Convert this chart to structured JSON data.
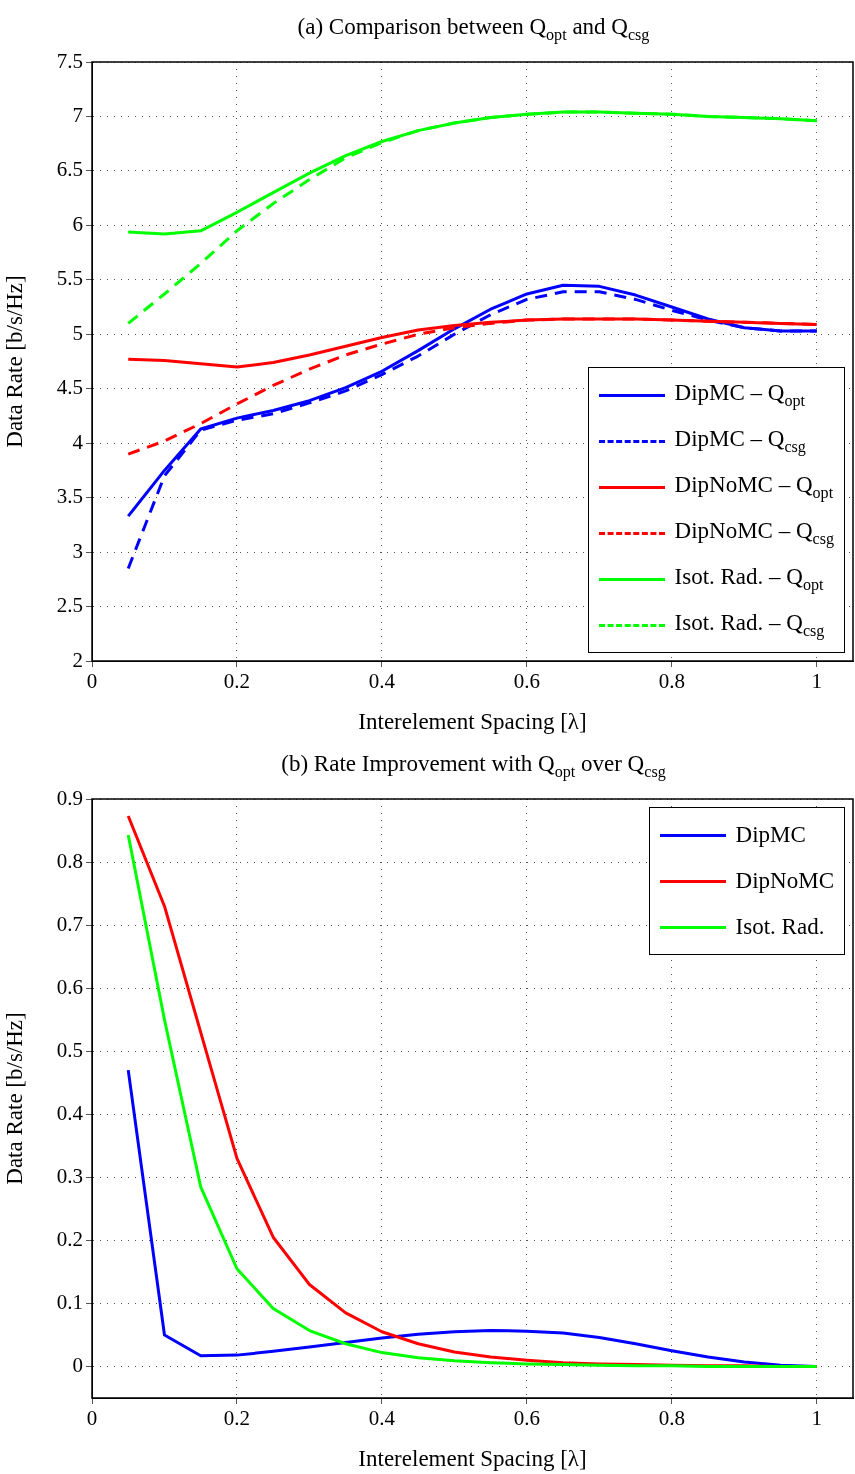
{
  "chart_data": [
    {
      "type": "line",
      "title": "(a) Comparison between Q$_{opt}$ and Q$_{csg}$",
      "xlabel": "Interelement Spacing [λ]",
      "ylabel": "Data Rate [b/s/Hz]",
      "x": [
        0.05,
        0.1,
        0.15,
        0.2,
        0.25,
        0.3,
        0.35,
        0.4,
        0.45,
        0.5,
        0.55,
        0.6,
        0.65,
        0.7,
        0.75,
        0.8,
        0.85,
        0.9,
        0.95,
        1
      ],
      "xlim": [
        0,
        1.05
      ],
      "xticks": [
        0,
        0.2,
        0.4,
        0.6,
        0.8,
        1
      ],
      "ylim": [
        2,
        7.5
      ],
      "yticks": [
        2,
        2.5,
        3,
        3.5,
        4,
        4.5,
        5,
        5.5,
        6,
        6.5,
        7,
        7.5
      ],
      "grid": true,
      "legend": "bottom right",
      "marker": "none",
      "series": [
        {
          "name": "DipMC – Q$_{opt}$",
          "color": "#0000ff",
          "line_style": "solid",
          "values": [
            3.33,
            3.75,
            4.13,
            4.23,
            4.3,
            4.39,
            4.51,
            4.66,
            4.85,
            5.05,
            5.23,
            5.37,
            5.45,
            5.44,
            5.36,
            5.25,
            5.14,
            5.06,
            5.03,
            5.03
          ]
        },
        {
          "name": "DipMC – Q$_{csg}$",
          "color": "#0000ff",
          "line_style": "dashed",
          "values": [
            2.85,
            3.7,
            4.12,
            4.21,
            4.27,
            4.37,
            4.48,
            4.63,
            4.8,
            5.0,
            5.18,
            5.32,
            5.39,
            5.39,
            5.32,
            5.22,
            5.13,
            5.06,
            5.03,
            5.03
          ]
        },
        {
          "name": "DipNoMC – Q$_{opt}$",
          "color": "#ff0000",
          "line_style": "solid",
          "values": [
            4.77,
            4.76,
            4.73,
            4.7,
            4.74,
            4.81,
            4.89,
            4.97,
            5.04,
            5.08,
            5.11,
            5.13,
            5.14,
            5.14,
            5.14,
            5.13,
            5.12,
            5.11,
            5.1,
            5.09
          ]
        },
        {
          "name": "DipNoMC – Q$_{csg}$",
          "color": "#ff0000",
          "line_style": "dashed",
          "values": [
            3.9,
            4.02,
            4.18,
            4.36,
            4.53,
            4.68,
            4.81,
            4.91,
            5.0,
            5.06,
            5.1,
            5.13,
            5.14,
            5.14,
            5.14,
            5.13,
            5.12,
            5.11,
            5.1,
            5.09
          ]
        },
        {
          "name": "Isot. Rad. – Q$_{opt}$",
          "color": "#00ff00",
          "line_style": "solid",
          "values": [
            5.94,
            5.92,
            5.95,
            6.12,
            6.3,
            6.48,
            6.64,
            6.77,
            6.87,
            6.94,
            6.99,
            7.02,
            7.04,
            7.04,
            7.03,
            7.02,
            7.0,
            6.99,
            6.98,
            6.96
          ]
        },
        {
          "name": "Isot. Rad. – Q$_{csg}$",
          "color": "#00ff00",
          "line_style": "dashed",
          "values": [
            5.1,
            5.37,
            5.65,
            5.95,
            6.2,
            6.42,
            6.62,
            6.76,
            6.87,
            6.94,
            6.99,
            7.02,
            7.04,
            7.04,
            7.03,
            7.02,
            7.0,
            6.99,
            6.98,
            6.96
          ]
        }
      ]
    },
    {
      "type": "line",
      "title": "(b) Rate Improvement with Q$_{opt}$ over Q$_{csg}$",
      "xlabel": "Interelement Spacing [λ]",
      "ylabel": "Data Rate [b/s/Hz]",
      "x": [
        0.05,
        0.1,
        0.15,
        0.2,
        0.25,
        0.3,
        0.35,
        0.4,
        0.45,
        0.5,
        0.55,
        0.6,
        0.65,
        0.7,
        0.75,
        0.8,
        0.85,
        0.9,
        0.95,
        1
      ],
      "xlim": [
        0,
        1.05
      ],
      "xticks": [
        0,
        0.2,
        0.4,
        0.6,
        0.8,
        1
      ],
      "ylim": [
        -0.05,
        0.9
      ],
      "yticks": [
        0,
        0.1,
        0.2,
        0.3,
        0.4,
        0.5,
        0.6,
        0.7,
        0.8,
        0.9
      ],
      "grid": true,
      "legend": "top right",
      "marker": "none",
      "series": [
        {
          "name": "DipMC",
          "color": "#0000ff",
          "line_style": "solid",
          "values": [
            0.47,
            0.05,
            0.017,
            0.018,
            0.024,
            0.031,
            0.038,
            0.045,
            0.051,
            0.055,
            0.057,
            0.056,
            0.053,
            0.046,
            0.036,
            0.025,
            0.015,
            0.007,
            0.002,
            0
          ]
        },
        {
          "name": "DipNoMC",
          "color": "#ff0000",
          "line_style": "solid",
          "values": [
            0.873,
            0.73,
            0.53,
            0.33,
            0.205,
            0.13,
            0.085,
            0.055,
            0.036,
            0.023,
            0.015,
            0.01,
            0.006,
            0.004,
            0.003,
            0.002,
            0.001,
            0.001,
            0,
            0
          ]
        },
        {
          "name": "Isot. Rad.",
          "color": "#00ff00",
          "line_style": "solid",
          "values": [
            0.843,
            0.55,
            0.285,
            0.155,
            0.092,
            0.057,
            0.036,
            0.022,
            0.014,
            0.009,
            0.006,
            0.004,
            0.003,
            0.002,
            0.001,
            0.001,
            0,
            0,
            0,
            0
          ]
        }
      ]
    }
  ]
}
